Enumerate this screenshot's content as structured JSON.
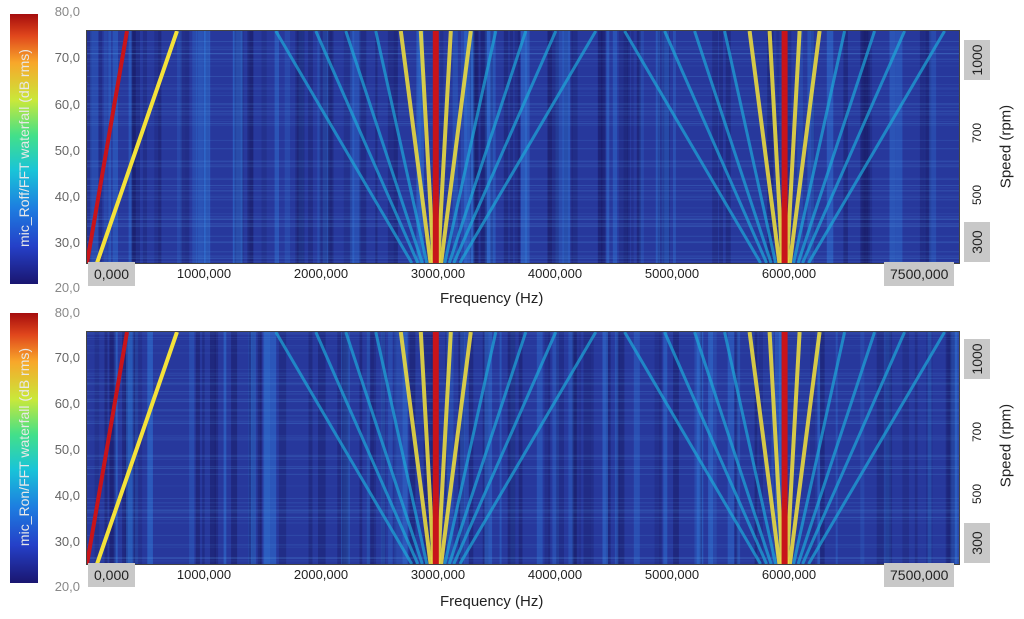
{
  "chart_data": [
    {
      "type": "heatmap",
      "title": "",
      "colorbar_label": "mic_Roff/FFT waterfall (dB rms)",
      "colorbar_range": [
        20,
        80
      ],
      "colorbar_ticks": [
        "80,0",
        "70,0",
        "60,0",
        "50,0",
        "40,0",
        "30,0",
        "20,0"
      ],
      "xlabel": "Frequency (Hz)",
      "xlim": [
        0,
        7500
      ],
      "x_ticks": [
        "0,000",
        "1000,000",
        "2000,000",
        "3000,000",
        "4000,000",
        "5000,000",
        "6000,000",
        "7500,000"
      ],
      "ylabel_right": "Speed (rpm)",
      "right_ticks": [
        "1000",
        "700",
        "500",
        "300"
      ],
      "dominant_orders_hz": [
        3000,
        6000
      ],
      "grid": false
    },
    {
      "type": "heatmap",
      "title": "",
      "colorbar_label": "mic_Ron/FFT waterfall (dB rms)",
      "colorbar_range": [
        20,
        80
      ],
      "colorbar_ticks": [
        "80,0",
        "70,0",
        "60,0",
        "50,0",
        "40,0",
        "30,0",
        "20,0"
      ],
      "xlabel": "Frequency (Hz)",
      "xlim": [
        0,
        7500
      ],
      "x_ticks": [
        "0,000",
        "1000,000",
        "2000,000",
        "3000,000",
        "4000,000",
        "5000,000",
        "6000,000",
        "7500,000"
      ],
      "ylabel_right": "Speed (rpm)",
      "right_ticks": [
        "1000",
        "700",
        "500",
        "300"
      ],
      "dominant_orders_hz": [
        3000,
        6000
      ],
      "grid": false
    }
  ],
  "colors": {
    "background_low": "#27389c",
    "mid": "#1ea8d8",
    "high": "#f4e23a",
    "peak": "#c8141a"
  }
}
